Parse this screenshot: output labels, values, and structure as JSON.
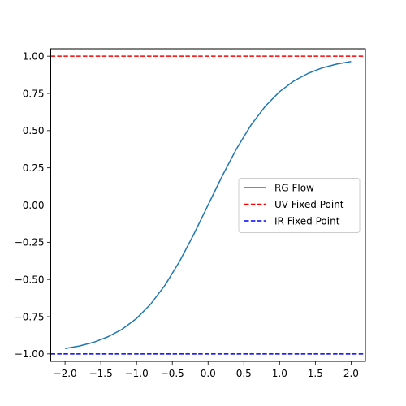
{
  "chart_data": {
    "type": "line",
    "title": "",
    "xlabel": "",
    "ylabel": "",
    "xlim": [
      -2.2,
      2.2
    ],
    "ylim": [
      -1.05,
      1.05
    ],
    "xticks": [
      -2.0,
      -1.5,
      -1.0,
      -0.5,
      0.0,
      0.5,
      1.0,
      1.5,
      2.0
    ],
    "xtick_labels": [
      "−2.0",
      "−1.5",
      "−1.0",
      "−0.5",
      "0.0",
      "0.5",
      "1.0",
      "1.5",
      "2.0"
    ],
    "yticks": [
      -1.0,
      -0.75,
      -0.5,
      -0.25,
      0.0,
      0.25,
      0.5,
      0.75,
      1.0
    ],
    "ytick_labels": [
      "−1.00",
      "−0.75",
      "−0.50",
      "−0.25",
      "0.00",
      "0.25",
      "0.50",
      "0.75",
      "1.00"
    ],
    "grid": false,
    "legend_position": "center-right",
    "series": [
      {
        "name": "RG Flow",
        "style": "solid",
        "color": "#1f77b4",
        "x": [
          -2.0,
          -1.8,
          -1.6,
          -1.4,
          -1.2,
          -1.0,
          -0.8,
          -0.6,
          -0.4,
          -0.2,
          0.0,
          0.2,
          0.4,
          0.6,
          0.8,
          1.0,
          1.2,
          1.4,
          1.6,
          1.8,
          2.0
        ],
        "y": [
          -0.964,
          -0.947,
          -0.922,
          -0.885,
          -0.834,
          -0.762,
          -0.664,
          -0.537,
          -0.38,
          -0.197,
          0.0,
          0.197,
          0.38,
          0.537,
          0.664,
          0.762,
          0.834,
          0.885,
          0.922,
          0.947,
          0.964
        ]
      },
      {
        "name": "UV Fixed Point",
        "style": "dashed",
        "color": "#ff0000",
        "hline": 1.0
      },
      {
        "name": "IR Fixed Point",
        "style": "dashed",
        "color": "#0000ff",
        "hline": -1.0
      }
    ]
  }
}
